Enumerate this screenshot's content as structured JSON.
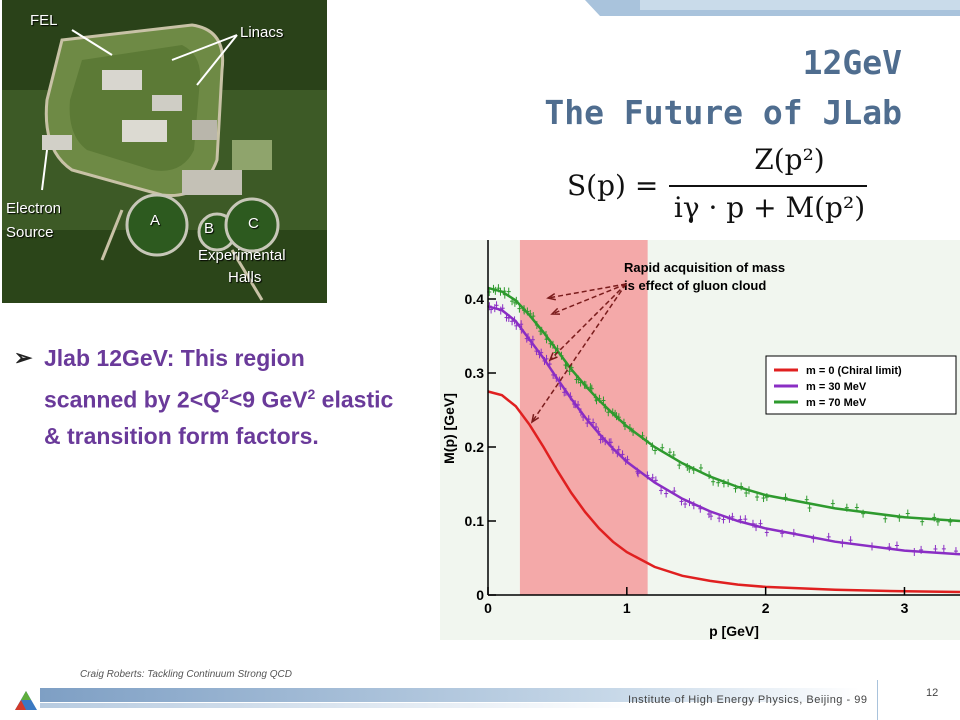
{
  "slide": {
    "title_line1": "12GeV",
    "title_line2": "The Future of JLab",
    "footer_left": "Craig Roberts: Tackling Continuum Strong QCD",
    "footer_right": "Institute of High Energy Physics, Beijing - 99",
    "page_number": "12"
  },
  "photo": {
    "labels": {
      "fel": "FEL",
      "linacs": "Linacs",
      "electron": "Electron",
      "source": "Source",
      "hall_a": "A",
      "hall_b": "B",
      "hall_c": "C",
      "experimental": "Experimental",
      "halls": "Halls"
    }
  },
  "formula": {
    "lhs": "S(p) =",
    "numerator": "Z(p²)",
    "denominator": "iγ · p + M(p²)"
  },
  "bullet": {
    "marker": "➢",
    "part1": "Jlab 12GeV: This region scanned by 2<Q",
    "sup1": "2",
    "part2": "<9 GeV",
    "sup2": "2",
    "part3": " elastic & transition form factors."
  },
  "chart_data": {
    "type": "line",
    "xlabel": "p [GeV]",
    "ylabel": "M(p) [GeV]",
    "xlim": [
      0,
      3.4
    ],
    "ylim": [
      0,
      0.45
    ],
    "x_ticks": [
      "0",
      "1",
      "2",
      "3"
    ],
    "y_ticks": [
      "0",
      "0.1",
      "0.2",
      "0.3",
      "0.4"
    ],
    "highlight_band": [
      0.23,
      1.15
    ],
    "annotation": "Rapid acquisition of mass is effect of gluon cloud",
    "legend_position": "right",
    "series": [
      {
        "name": "m = 0 (Chiral limit)",
        "color": "#e02020",
        "x": [
          0,
          0.1,
          0.2,
          0.3,
          0.4,
          0.5,
          0.6,
          0.7,
          0.8,
          0.9,
          1.0,
          1.2,
          1.4,
          1.6,
          1.8,
          2.0,
          2.5,
          3.0,
          3.4
        ],
        "y": [
          0.275,
          0.27,
          0.255,
          0.23,
          0.2,
          0.168,
          0.138,
          0.112,
          0.09,
          0.072,
          0.058,
          0.038,
          0.026,
          0.019,
          0.014,
          0.011,
          0.007,
          0.005,
          0.004
        ]
      },
      {
        "name": "m = 30 MeV",
        "color": "#8a2ec4",
        "x": [
          0,
          0.1,
          0.2,
          0.3,
          0.4,
          0.5,
          0.6,
          0.7,
          0.8,
          0.9,
          1.0,
          1.2,
          1.4,
          1.6,
          1.8,
          2.0,
          2.5,
          3.0,
          3.4
        ],
        "y": [
          0.39,
          0.385,
          0.37,
          0.345,
          0.32,
          0.292,
          0.265,
          0.24,
          0.218,
          0.198,
          0.18,
          0.152,
          0.13,
          0.113,
          0.1,
          0.09,
          0.072,
          0.06,
          0.055
        ]
      },
      {
        "name": "m = 70 MeV",
        "color": "#2e9a2e",
        "x": [
          0,
          0.1,
          0.2,
          0.3,
          0.4,
          0.5,
          0.6,
          0.7,
          0.8,
          0.9,
          1.0,
          1.2,
          1.4,
          1.6,
          1.8,
          2.0,
          2.5,
          3.0,
          3.4
        ],
        "y": [
          0.415,
          0.41,
          0.398,
          0.378,
          0.355,
          0.33,
          0.305,
          0.283,
          0.263,
          0.245,
          0.228,
          0.2,
          0.178,
          0.16,
          0.146,
          0.135,
          0.117,
          0.105,
          0.1
        ]
      }
    ]
  }
}
